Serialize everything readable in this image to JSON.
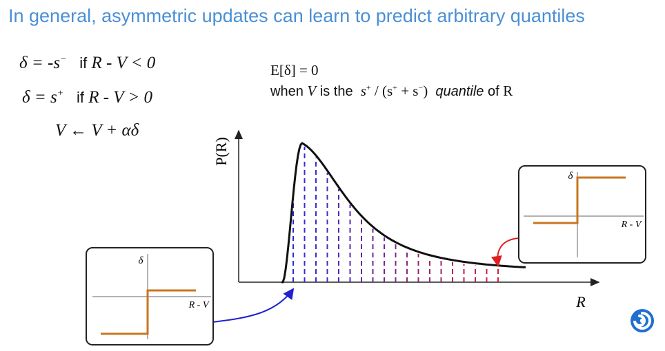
{
  "slide": {
    "title": "In general, asymmetric updates can learn to predict arbitrary quantiles"
  },
  "equations": {
    "line1": {
      "lhs": "δ = -s",
      "sup": "−",
      "cond_word": "if",
      "cond": "R - V < 0"
    },
    "line2": {
      "lhs": "δ = s",
      "sup": "+",
      "cond_word": "if",
      "cond": "R - V > 0"
    },
    "line3": "V ← V + αδ"
  },
  "note": {
    "line1": "E[δ] = 0",
    "when": "when",
    "V": "V",
    "is_the": "is the",
    "fraction": {
      "a": "s",
      "a_sup": "+",
      "mid": " / (s",
      "mid_sup": "+",
      "plus": " + s",
      "plus_sup": "−",
      "end": ")"
    },
    "quantile": "quantile",
    "of": "of",
    "R": "R"
  },
  "plot": {
    "ylabel": "P(R)",
    "xlabel": "R",
    "curve_color": "#111111",
    "dash_color_start": "#2b2bd6",
    "dash_color_end": "#d61e3c",
    "num_quantile_lines": 19
  },
  "inset_left": {
    "ylabel": "δ",
    "xlabel": "R - V",
    "step_color": "#c8761f",
    "arrow_color": "#2020d0"
  },
  "inset_right": {
    "ylabel": "δ",
    "xlabel": "R - V",
    "step_color": "#c8761f",
    "arrow_color": "#e02020"
  },
  "logo": {
    "icon": "deepmind-logo-icon",
    "color": "#1f6fd1"
  }
}
